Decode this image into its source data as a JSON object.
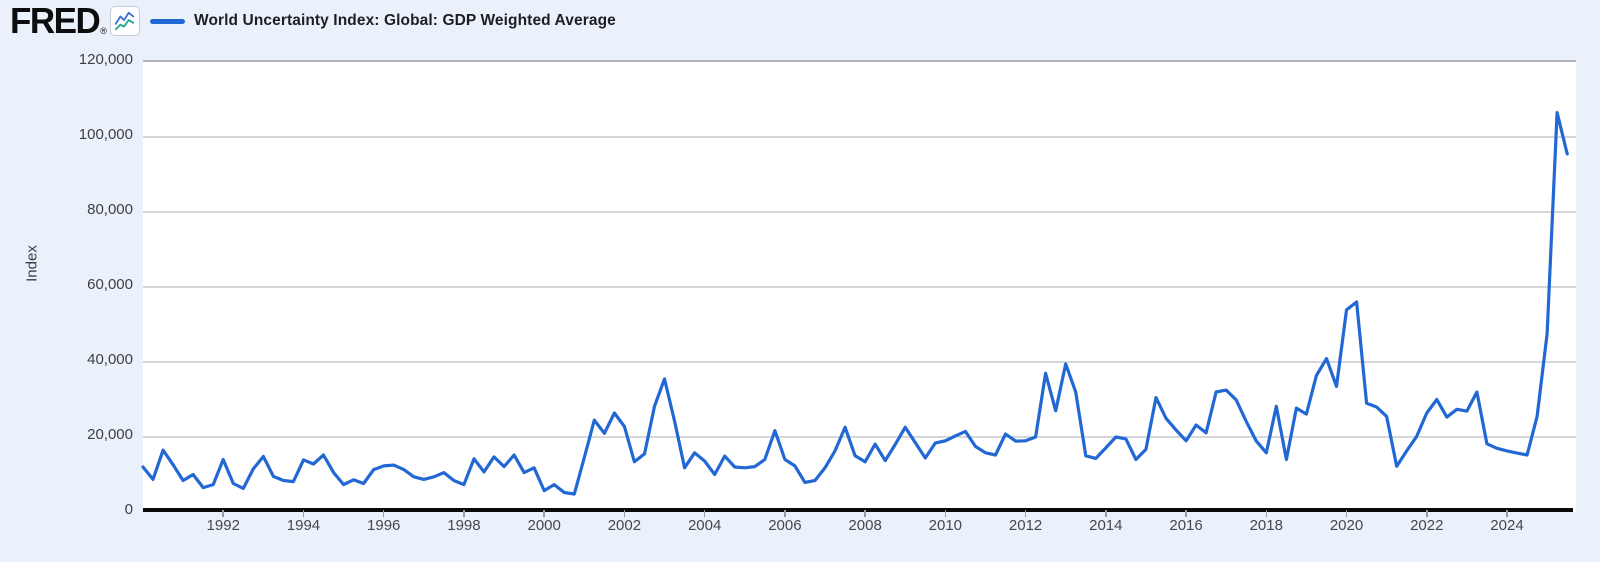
{
  "brand": {
    "logo_text": "FRED",
    "registered_mark": "®",
    "logo_icon": "fred-sparkline-icon"
  },
  "legend": {
    "series_label": "World Uncertainty Index: Global: GDP Weighted Average",
    "series_color": "#2268d4"
  },
  "y_axis": {
    "label": "Index",
    "ticks": [
      {
        "value": 0,
        "label": "0"
      },
      {
        "value": 20000,
        "label": "20,000"
      },
      {
        "value": 40000,
        "label": "40,000"
      },
      {
        "value": 60000,
        "label": "60,000"
      },
      {
        "value": 80000,
        "label": "80,000"
      },
      {
        "value": 100000,
        "label": "100,000"
      },
      {
        "value": 120000,
        "label": "120,000"
      }
    ]
  },
  "x_axis": {
    "tick_years": [
      1992,
      1994,
      1996,
      1998,
      2000,
      2002,
      2004,
      2006,
      2008,
      2010,
      2012,
      2014,
      2016,
      2018,
      2020,
      2022,
      2024
    ]
  },
  "colors": {
    "page_background": "#ebf1fa",
    "plot_background": "#ffffff",
    "gridline": "#c9cace",
    "plot_top_border": "#b2b3b9",
    "axis_line": "#0a0a0a",
    "tick_mark": "#9a9aa0",
    "axis_text": "#46464c",
    "line": "#2268d4",
    "icon_blue": "#3a6fd8",
    "icon_teal": "#22a898"
  },
  "chart_data": {
    "type": "line",
    "title": "World Uncertainty Index: Global: GDP Weighted Average",
    "xlabel": "",
    "ylabel": "Index",
    "frequency": "quarterly",
    "x_start_year": 1990,
    "x_start_quarter": 1,
    "xlim": [
      1990.0,
      2025.72
    ],
    "ylim": [
      0,
      120000
    ],
    "grid": true,
    "legend_position": "top-left",
    "gridline_values": [
      20000,
      40000,
      60000,
      80000,
      100000,
      120000
    ],
    "values": [
      12000,
      8700,
      16500,
      12600,
      8400,
      10000,
      6500,
      7300,
      14000,
      7600,
      6300,
      11500,
      14800,
      9500,
      8400,
      8100,
      13900,
      12800,
      15200,
      10500,
      7300,
      8600,
      7600,
      11300,
      12300,
      12500,
      11300,
      9400,
      8700,
      9400,
      10500,
      8400,
      7300,
      14200,
      10700,
      14700,
      12100,
      15200,
      10500,
      11800,
      5700,
      7300,
      5200,
      4800,
      14500,
      24500,
      21000,
      26400,
      22800,
      13400,
      15500,
      28200,
      35500,
      24200,
      11800,
      15800,
      13600,
      10000,
      14900,
      12000,
      11800,
      12100,
      14000,
      21700,
      14000,
      12300,
      7900,
      8400,
      11800,
      16300,
      22600,
      15000,
      13400,
      18100,
      13700,
      18000,
      22600,
      18500,
      14400,
      18400,
      19000,
      20300,
      21500,
      17500,
      15800,
      15200,
      20800,
      18900,
      19000,
      20000,
      37000,
      27000,
      39500,
      32000,
      15000,
      14300,
      17100,
      20000,
      19500,
      14000,
      16700,
      30500,
      25000,
      21900,
      19000,
      23200,
      21100,
      32000,
      32500,
      29900,
      24200,
      18900,
      15800,
      28200,
      14000,
      27700,
      26100,
      36400,
      40900,
      33500,
      53900,
      56000,
      29000,
      28000,
      25500,
      12200,
      16300,
      20200,
      26400,
      30000,
      25300,
      27400,
      26900,
      32000,
      18200,
      17000,
      16300,
      15700,
      15200,
      25500,
      47500,
      106500,
      95500
    ]
  }
}
